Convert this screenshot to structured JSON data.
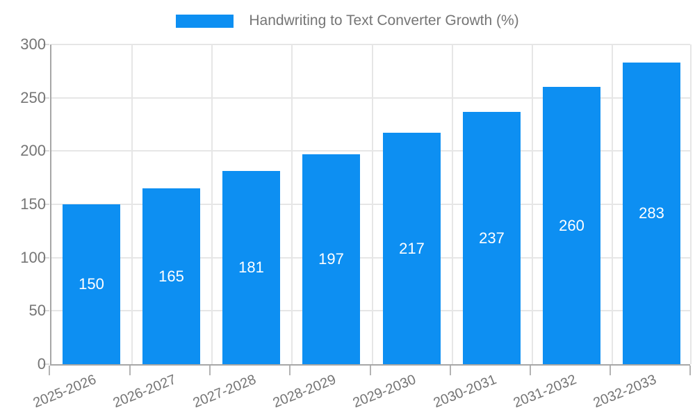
{
  "chart_data": {
    "type": "bar",
    "title": "",
    "xlabel": "",
    "ylabel": "",
    "series_name": "Handwriting to Text Converter Growth (%)",
    "categories": [
      "2025-2026",
      "2026-2027",
      "2027-2028",
      "2028-2029",
      "2029-2030",
      "2030-2031",
      "2031-2032",
      "2032-2033"
    ],
    "values": [
      150,
      165,
      181,
      197,
      217,
      237,
      260,
      283
    ],
    "ylim": [
      0,
      300
    ],
    "yticks": [
      0,
      50,
      100,
      150,
      200,
      250,
      300
    ],
    "grid": true,
    "value_labels_shown": true,
    "legend_position": "top-center",
    "colors": {
      "bar": "#0d8ff2",
      "value_label": "#ffffff",
      "axis_text": "#757575",
      "gridline": "#e6e6e6",
      "axis_line": "#a6a6a6",
      "y_tick_mark": "#d9d9d9",
      "x_tick_mark": "#b3b3b3",
      "background": "#ffffff"
    }
  }
}
